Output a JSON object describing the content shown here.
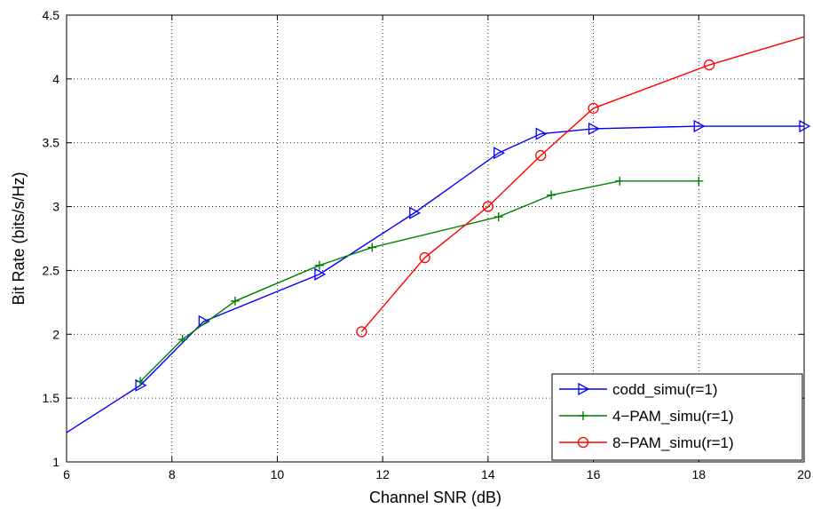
{
  "chart_data": {
    "type": "line",
    "title": "",
    "xlabel": "Channel SNR (dB)",
    "ylabel": "Bit Rate (bits/s/Hz)",
    "xlim": [
      6,
      20
    ],
    "ylim": [
      1,
      4.5
    ],
    "xticks": [
      6,
      8,
      10,
      12,
      14,
      16,
      18,
      20
    ],
    "yticks": [
      1,
      1.5,
      2,
      2.5,
      3,
      3.5,
      4,
      4.5
    ],
    "xtick_labels": [
      "6",
      "8",
      "10",
      "12",
      "14",
      "16",
      "18",
      "20"
    ],
    "ytick_labels": [
      "1",
      "1.5",
      "2",
      "2.5",
      "3",
      "3.5",
      "4",
      "4.5"
    ],
    "grid": true,
    "legend_position": "bottom-right",
    "series": [
      {
        "name": "codd_simu(r=1)",
        "color": "#0000ff",
        "marker": "triangle-right",
        "x": [
          6,
          7.4,
          8.6,
          10.8,
          12.6,
          14.2,
          15.0,
          16.0,
          18.0,
          20.0
        ],
        "y": [
          1.23,
          1.6,
          2.1,
          2.47,
          2.95,
          3.42,
          3.57,
          3.61,
          3.63,
          3.63
        ],
        "marker_start": 1
      },
      {
        "name": "4−PAM_simu(r=1)",
        "color": "#008000",
        "marker": "plus",
        "x": [
          7.4,
          8.2,
          9.2,
          10.8,
          11.8,
          14.2,
          15.2,
          16.5,
          18.0
        ],
        "y": [
          1.63,
          1.96,
          2.26,
          2.54,
          2.68,
          2.92,
          3.09,
          3.2,
          3.2
        ],
        "marker_start": 0
      },
      {
        "name": "8−PAM_simu(r=1)",
        "color": "#ff0000",
        "marker": "circle",
        "x": [
          11.6,
          12.8,
          14.0,
          15.0,
          16.0,
          18.2,
          20.0
        ],
        "y": [
          2.02,
          2.6,
          3.0,
          3.4,
          3.77,
          4.11,
          4.33
        ],
        "marker_count": 6
      }
    ]
  }
}
